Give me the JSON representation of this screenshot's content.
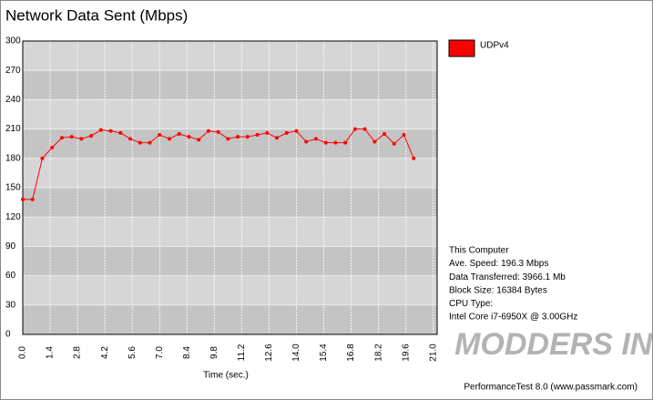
{
  "chart_data": {
    "type": "line",
    "title": "Network Data Sent (Mbps)",
    "x_label": "Time (sec.)",
    "x": [
      0,
      0.5,
      1,
      1.5,
      2,
      2.5,
      3,
      3.5,
      4,
      4.5,
      5,
      5.5,
      6,
      6.5,
      7,
      7.5,
      8,
      8.5,
      9,
      9.5,
      10,
      10.5,
      11,
      11.5,
      12,
      12.5,
      13,
      13.5,
      14,
      14.5,
      15,
      15.5,
      16,
      16.5,
      17,
      17.5,
      18,
      18.5,
      19,
      19.5,
      20
    ],
    "series": [
      {
        "name": "UDPv4",
        "color": "#ff0000",
        "values": [
          138,
          138,
          180,
          191,
          201,
          202,
          200,
          203,
          209,
          208,
          206,
          200,
          196,
          196,
          204,
          200,
          205,
          202,
          199,
          208,
          207,
          200,
          202,
          202,
          204,
          206,
          201,
          206,
          208,
          197,
          200,
          196,
          196,
          196,
          210,
          210,
          197,
          205,
          195,
          204,
          180
        ]
      }
    ],
    "xlim": [
      0,
      21.2
    ],
    "xticks": [
      {
        "value": 0,
        "label": "0.0"
      },
      1.4,
      2.8,
      4.2,
      5.6,
      {
        "value": 7,
        "label": "7.0"
      },
      8.4,
      9.8,
      11.2,
      12.6,
      {
        "value": 14,
        "label": "14.0"
      },
      15.4,
      16.8,
      18.2,
      19.6,
      {
        "value": 21,
        "label": "21.0"
      }
    ],
    "ylim": [
      0,
      300
    ],
    "yticks": [
      0,
      30,
      60,
      90,
      120,
      150,
      180,
      210,
      240,
      270,
      300
    ],
    "grid": true,
    "info": [
      "This Computer",
      "Ave. Speed: 196.3 Mbps",
      "Data Transferred: 3966.1 Mb",
      "Block Size: 16384 Bytes",
      "CPU Type:",
      "Intel Core i7-6950X @ 3.00GHz"
    ],
    "footer": "PerformanceTest 8.0 (www.passmark.com)",
    "watermark": "MODDERS INC"
  }
}
